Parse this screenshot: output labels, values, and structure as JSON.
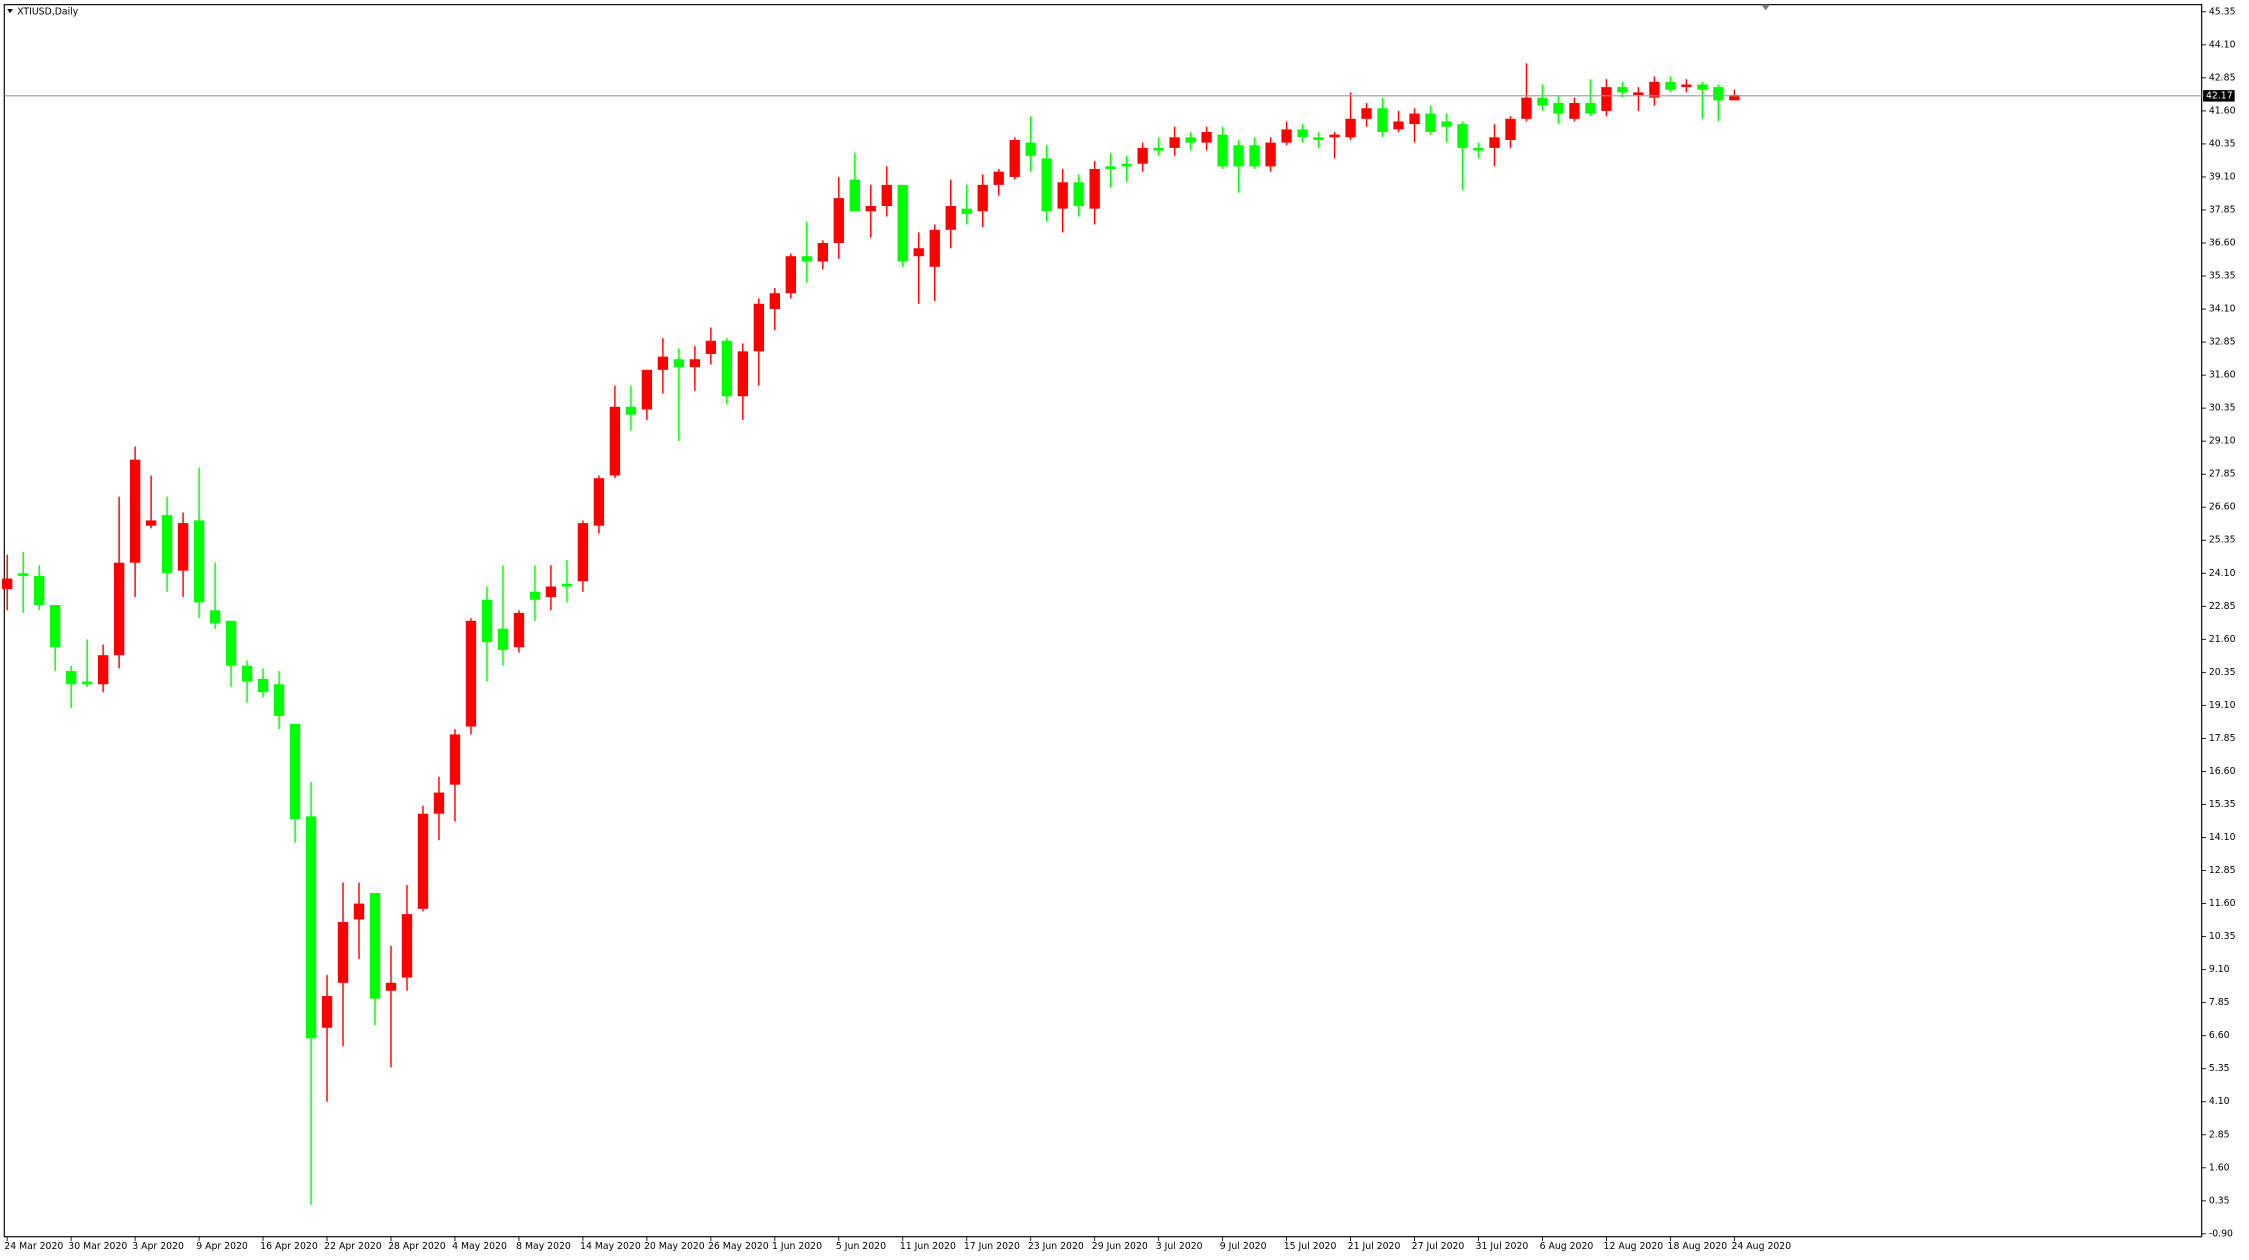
{
  "chart_data": {
    "type": "candlestick",
    "title": "XTIUSD,Daily",
    "up_color": "#ff0000",
    "down_color": "#00ff00",
    "current_price": 42.17,
    "categories": [
      "24 Mar 2020",
      null,
      null,
      null,
      "30 Mar 2020",
      null,
      null,
      null,
      "3 Apr 2020",
      null,
      null,
      null,
      "9 Apr 2020",
      null,
      null,
      null,
      "16 Apr 2020",
      null,
      null,
      null,
      "22 Apr 2020",
      null,
      null,
      null,
      "28 Apr 2020",
      null,
      null,
      null,
      "4 May 2020",
      null,
      null,
      null,
      "8 May 2020",
      null,
      null,
      null,
      "14 May 2020",
      null,
      null,
      null,
      "20 May 2020",
      null,
      null,
      null,
      "26 May 2020",
      null,
      null,
      null,
      "1 Jun 2020",
      null,
      null,
      null,
      "5 Jun 2020",
      null,
      null,
      null,
      "11 Jun 2020",
      null,
      null,
      null,
      "17 Jun 2020",
      null,
      null,
      null,
      "23 Jun 2020",
      null,
      null,
      null,
      "29 Jun 2020",
      null,
      null,
      null,
      "3 Jul 2020",
      null,
      null,
      null,
      "9 Jul 2020",
      null,
      null,
      null,
      "15 Jul 2020",
      null,
      null,
      null,
      "21 Jul 2020",
      null,
      null,
      null,
      "27 Jul 2020",
      null,
      null,
      null,
      "31 Jul 2020",
      null,
      null,
      null,
      "6 Aug 2020",
      null,
      null,
      null,
      "12 Aug 2020",
      null,
      null,
      null,
      "18 Aug 2020",
      null,
      null,
      null,
      "24 Aug 2020"
    ],
    "open": [
      23.5,
      24.1,
      24.0,
      22.9,
      20.4,
      20.0,
      19.9,
      21.0,
      24.5,
      25.9,
      26.3,
      24.2,
      26.1,
      22.7,
      22.3,
      20.6,
      20.1,
      19.9,
      18.4,
      14.9,
      6.9,
      8.6,
      11.0,
      12.0,
      8.3,
      8.8,
      11.4,
      15.0,
      16.1,
      18.3,
      23.1,
      22.0,
      21.3,
      23.4,
      23.2,
      23.7,
      23.8,
      25.9,
      27.8,
      30.4,
      30.3,
      31.8,
      32.2,
      31.9,
      32.4,
      32.9,
      30.8,
      32.5,
      34.1,
      34.7,
      36.1,
      35.9,
      36.6,
      39.0,
      37.8,
      38.0,
      38.8,
      36.1,
      35.7,
      37.1,
      37.9,
      37.8,
      38.8,
      39.1,
      40.4,
      39.8,
      37.9,
      38.9,
      37.9,
      39.5,
      39.6,
      39.6,
      40.2,
      40.2,
      40.6,
      40.4,
      40.7,
      40.3,
      40.3,
      39.5,
      40.4,
      40.9,
      40.6,
      40.6,
      40.6,
      41.3,
      41.7,
      40.9,
      41.1,
      41.5,
      41.2,
      41.1,
      40.2,
      40.2,
      40.5,
      41.3,
      42.1,
      41.9,
      41.3,
      41.9,
      41.6,
      42.5,
      42.2,
      42.1,
      42.7,
      42.5,
      42.6,
      42.5,
      42.0
    ],
    "high": [
      24.8,
      24.9,
      24.4,
      22.9,
      20.6,
      21.6,
      21.4,
      27.0,
      28.9,
      27.8,
      27.0,
      26.4,
      28.1,
      24.5,
      22.3,
      20.8,
      20.5,
      20.4,
      18.4,
      16.2,
      8.9,
      12.4,
      12.4,
      12.0,
      10.0,
      12.3,
      15.3,
      16.4,
      18.2,
      22.4,
      23.6,
      24.4,
      22.7,
      24.4,
      24.4,
      24.6,
      26.1,
      27.8,
      31.2,
      31.2,
      31.8,
      33.0,
      32.6,
      32.7,
      33.4,
      33.0,
      32.8,
      34.5,
      34.9,
      36.2,
      37.4,
      36.7,
      39.1,
      40.0,
      38.8,
      39.5,
      38.8,
      37.0,
      37.3,
      39.0,
      38.8,
      39.2,
      39.4,
      40.6,
      41.4,
      40.3,
      39.4,
      39.2,
      39.7,
      40.0,
      39.9,
      40.4,
      40.6,
      41.0,
      40.8,
      41.0,
      41.0,
      40.5,
      40.6,
      40.6,
      41.2,
      41.1,
      40.8,
      40.8,
      42.3,
      41.9,
      42.1,
      41.6,
      41.7,
      41.8,
      41.5,
      41.2,
      40.4,
      41.1,
      41.4,
      43.4,
      42.6,
      42.2,
      42.1,
      42.8,
      42.8,
      42.7,
      42.5,
      42.9,
      42.9,
      42.8,
      42.7,
      42.6,
      42.4
    ],
    "low": [
      22.7,
      22.6,
      22.7,
      20.4,
      19.0,
      19.8,
      19.6,
      20.5,
      23.2,
      25.8,
      23.4,
      23.2,
      22.4,
      22.0,
      19.8,
      19.2,
      19.4,
      18.2,
      13.9,
      0.2,
      4.1,
      6.2,
      9.5,
      7.0,
      5.4,
      8.3,
      11.3,
      14.0,
      14.7,
      18.0,
      20.0,
      20.6,
      21.1,
      22.3,
      22.7,
      23.0,
      23.4,
      25.6,
      27.7,
      29.5,
      29.9,
      30.9,
      29.1,
      31.0,
      32.0,
      30.5,
      29.9,
      31.2,
      33.3,
      34.5,
      35.1,
      35.6,
      36.0,
      37.8,
      36.8,
      37.6,
      35.7,
      34.3,
      34.4,
      36.4,
      37.3,
      37.2,
      38.4,
      39.0,
      39.3,
      37.4,
      37.0,
      37.6,
      37.3,
      38.7,
      38.9,
      39.3,
      39.9,
      39.9,
      40.1,
      40.1,
      39.4,
      38.5,
      39.4,
      39.3,
      40.3,
      40.4,
      40.2,
      39.8,
      40.5,
      41.0,
      40.6,
      40.8,
      40.4,
      40.7,
      40.4,
      38.6,
      39.8,
      39.5,
      40.2,
      41.2,
      41.6,
      41.1,
      41.2,
      41.4,
      41.4,
      42.1,
      41.6,
      41.8,
      42.3,
      42.3,
      41.3,
      41.2,
      42.0
    ],
    "close": [
      23.9,
      24.0,
      22.9,
      21.3,
      19.9,
      19.9,
      21.0,
      24.5,
      28.4,
      26.1,
      24.1,
      26.0,
      23.0,
      22.2,
      20.6,
      20.0,
      19.6,
      18.7,
      14.8,
      6.5,
      8.1,
      10.9,
      11.6,
      8.0,
      8.6,
      11.2,
      15.0,
      15.8,
      18.0,
      22.3,
      21.5,
      21.2,
      22.6,
      23.1,
      23.6,
      23.6,
      26.0,
      27.7,
      30.4,
      30.1,
      31.8,
      32.3,
      31.9,
      32.2,
      32.9,
      30.8,
      32.5,
      34.3,
      34.7,
      36.1,
      35.9,
      36.6,
      38.3,
      37.8,
      38.0,
      38.8,
      35.9,
      36.4,
      37.1,
      38.0,
      37.7,
      38.8,
      39.3,
      40.5,
      39.9,
      37.8,
      38.9,
      38.0,
      39.4,
      39.4,
      39.5,
      40.2,
      40.1,
      40.6,
      40.4,
      40.8,
      39.5,
      39.5,
      39.5,
      40.4,
      40.9,
      40.6,
      40.5,
      40.7,
      41.3,
      41.7,
      40.8,
      41.2,
      41.5,
      40.8,
      41.0,
      40.2,
      40.1,
      40.6,
      41.3,
      42.1,
      41.8,
      41.5,
      41.9,
      41.5,
      42.5,
      42.3,
      42.3,
      42.7,
      42.4,
      42.6,
      42.4,
      42.0,
      42.2
    ],
    "ylim": [
      -0.9,
      45.35
    ],
    "yticks": [
      {
        "value": -0.9,
        "label": "-0.90"
      },
      0.35,
      {
        "value": 1.6,
        "label": "1.60"
      },
      2.85,
      {
        "value": 4.1,
        "label": "4.10"
      },
      5.35,
      {
        "value": 6.6,
        "label": "6.60"
      },
      7.85,
      {
        "value": 9.1,
        "label": "9.10"
      },
      10.35,
      {
        "value": 11.6,
        "label": "11.60"
      },
      12.85,
      {
        "value": 14.1,
        "label": "14.10"
      },
      15.35,
      {
        "value": 16.6,
        "label": "16.60"
      },
      17.85,
      {
        "value": 19.1,
        "label": "19.10"
      },
      20.35,
      {
        "value": 21.6,
        "label": "21.60"
      },
      22.85,
      {
        "value": 24.1,
        "label": "24.10"
      },
      25.35,
      {
        "value": 26.6,
        "label": "26.60"
      },
      27.85,
      {
        "value": 29.1,
        "label": "29.10"
      },
      30.35,
      {
        "value": 31.6,
        "label": "31.60"
      },
      32.85,
      {
        "value": 34.1,
        "label": "34.10"
      },
      35.35,
      {
        "value": 36.6,
        "label": "36.60"
      },
      37.85,
      {
        "value": 39.1,
        "label": "39.10"
      },
      40.35,
      {
        "value": 41.6,
        "label": "41.60"
      },
      42.85,
      {
        "value": 44.1,
        "label": "44.10"
      },
      45.35
    ]
  }
}
